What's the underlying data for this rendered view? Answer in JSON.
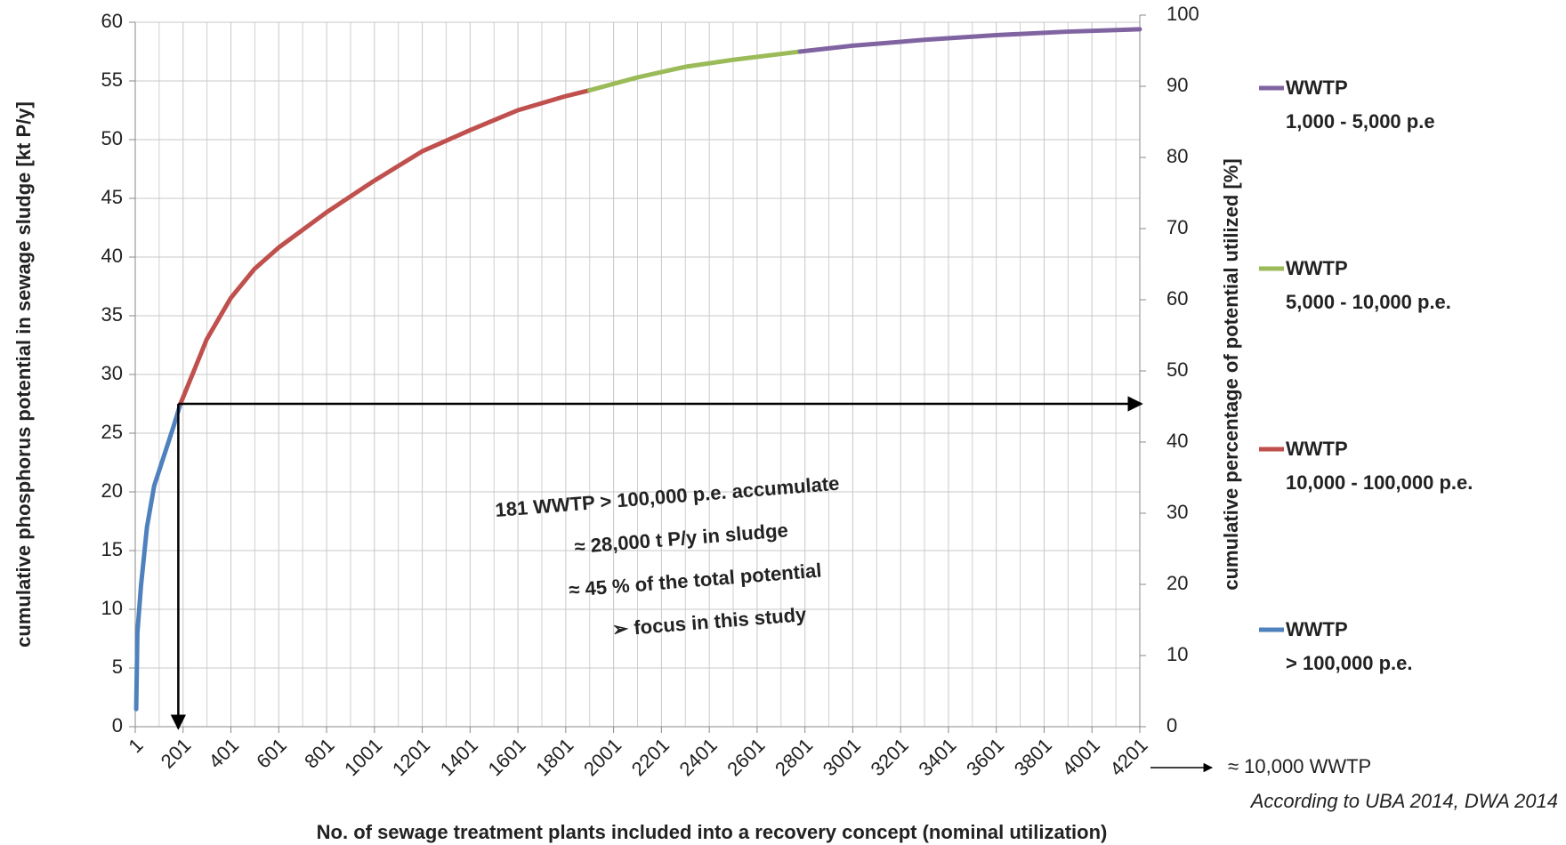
{
  "chart_data": {
    "type": "line",
    "xlabel": "No. of sewage treatment plants included into a recovery concept (nominal utilization)",
    "ylabel": "cumulative phosphorus  potential in sewage sludge  [kt P/y]",
    "y2label": "cumulative percentage of potential utilized [%]",
    "xlim": [
      1,
      4201
    ],
    "xticks": [
      1,
      201,
      401,
      601,
      801,
      1001,
      1201,
      1401,
      1601,
      1801,
      2001,
      2201,
      2401,
      2601,
      2801,
      3001,
      3201,
      3401,
      3601,
      3801,
      4001,
      4201
    ],
    "xminorticks": [
      101,
      301,
      501,
      701,
      901,
      1101,
      1301,
      1501,
      1701,
      1901,
      2101,
      2301,
      2501,
      2701,
      2901,
      3101,
      3301,
      3501,
      3701,
      3901,
      4101
    ],
    "ylim": [
      0,
      60
    ],
    "yticks": [
      0,
      5,
      10,
      15,
      20,
      25,
      30,
      35,
      40,
      45,
      50,
      55,
      60
    ],
    "y2lim": [
      0,
      100
    ],
    "y2ticks": [
      0,
      10,
      20,
      30,
      40,
      50,
      60,
      70,
      80,
      90,
      100
    ],
    "grid": true,
    "legend": "right",
    "series": [
      {
        "name": "WWTP\n> 100,000 p.e.",
        "color": "#4f81bd",
        "x": [
          5,
          10,
          25,
          50,
          80,
          120,
          160,
          190
        ],
        "values": [
          1.5,
          8,
          12,
          17,
          20.5,
          23,
          25.5,
          27.5
        ]
      },
      {
        "name": "WWTP\n10,000 - 100,000 p.e.",
        "color": "#c0504d",
        "x": [
          190,
          250,
          300,
          400,
          500,
          600,
          800,
          1000,
          1200,
          1400,
          1600,
          1800,
          1900
        ],
        "values": [
          27.5,
          30.5,
          33,
          36.5,
          39,
          40.8,
          43.8,
          46.5,
          49,
          50.8,
          52.5,
          53.7,
          54.2
        ]
      },
      {
        "name": "WWTP\n5,000 - 10,000 p.e.",
        "color": "#9bbb59",
        "x": [
          1900,
          2100,
          2300,
          2500,
          2780
        ],
        "values": [
          54.2,
          55.3,
          56.2,
          56.8,
          57.5
        ]
      },
      {
        "name": "WWTP\n1,000 - 5,000 p.e",
        "color": "#8064a2",
        "x": [
          2780,
          3000,
          3300,
          3600,
          3900,
          4201
        ],
        "values": [
          57.5,
          58,
          58.5,
          58.9,
          59.2,
          59.4
        ]
      }
    ],
    "reference_point": {
      "x": 181,
      "y": 27.5
    },
    "annotation": [
      "181 WWTP > 100,000 p.e. accumulate",
      "≈ 28,000 t P/y in sludge",
      "≈ 45 % of the total potential",
      "➢  focus in this study"
    ],
    "x_extension": "≈ 10,000 WWTP",
    "source": "According to UBA 2014, DWA 2014"
  }
}
